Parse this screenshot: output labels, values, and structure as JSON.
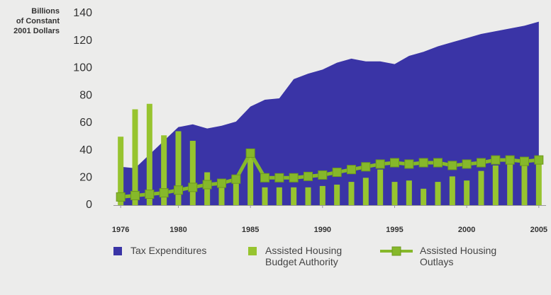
{
  "chart_data": {
    "type": "area-bar-line",
    "ylabel": [
      "Billions",
      "of Constant",
      "2001 Dollars"
    ],
    "x": [
      1976,
      1977,
      1978,
      1979,
      1980,
      1981,
      1982,
      1983,
      1984,
      1985,
      1986,
      1987,
      1988,
      1989,
      1990,
      1991,
      1992,
      1993,
      1994,
      1995,
      1996,
      1997,
      1998,
      1999,
      2000,
      2001,
      2002,
      2003,
      2004,
      2005
    ],
    "xlim": [
      1975.5,
      2005.5
    ],
    "xticks": [
      1976,
      1980,
      1985,
      1990,
      1995,
      2000,
      2005
    ],
    "ylim": [
      0,
      140
    ],
    "yticks": [
      0,
      20,
      40,
      60,
      80,
      100,
      120,
      140
    ],
    "grid": false,
    "legend": "bottom",
    "series": [
      {
        "name": "Tax Expenditures",
        "kind": "area",
        "color": "#3a34a6",
        "values": [
          28,
          27,
          37,
          47,
          57,
          59,
          56,
          58,
          61,
          72,
          77,
          78,
          92,
          96,
          99,
          104,
          107,
          105,
          105,
          103,
          109,
          112,
          116,
          119,
          122,
          125,
          127,
          129,
          131,
          134
        ]
      },
      {
        "name": "Assisted Housing Budget Authority",
        "kind": "bar",
        "color": "#97c42f",
        "values": [
          50,
          70,
          74,
          51,
          54,
          47,
          24,
          17,
          17,
          40,
          13,
          13,
          13,
          13,
          14,
          15,
          17,
          20,
          26,
          17,
          18,
          12,
          17,
          21,
          18,
          25,
          29,
          30,
          31,
          31
        ]
      },
      {
        "name": "Assisted Housing Outlays",
        "kind": "line",
        "color": "#86b82a",
        "values": [
          6,
          7,
          8,
          9,
          11,
          13,
          15,
          16,
          19,
          38,
          20,
          20,
          20,
          21,
          22,
          24,
          26,
          28,
          30,
          31,
          30,
          31,
          31,
          29,
          30,
          31,
          33,
          33,
          32,
          33
        ]
      }
    ]
  }
}
